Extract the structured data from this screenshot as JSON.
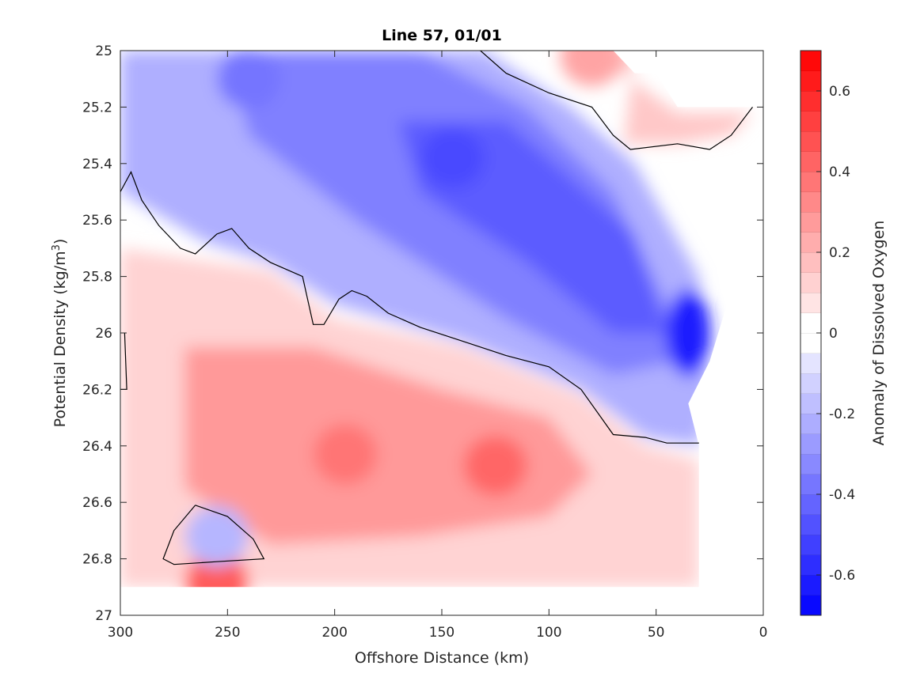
{
  "chart_data": {
    "type": "contour",
    "title": "Line 57, 01/01",
    "xlabel": "Offshore Distance (km)",
    "ylabel_main": "Potential Density (kg/m",
    "ylabel_sup": "3",
    "ylabel_close": ")",
    "xlim": [
      300,
      0
    ],
    "ylim": [
      25,
      27
    ],
    "y_reversed": true,
    "x_reversed": true,
    "xticks": [
      300,
      250,
      200,
      150,
      100,
      50,
      0
    ],
    "yticks": [
      25,
      25.2,
      25.4,
      25.6,
      25.8,
      26,
      26.2,
      26.4,
      26.6,
      26.8,
      27
    ],
    "colorbar": {
      "label": "Anomaly of Dissolved Oxygen",
      "range": [
        -0.7,
        0.7
      ],
      "ticks": [
        -0.6,
        -0.4,
        -0.2,
        0,
        0.2,
        0.4,
        0.6
      ],
      "levels": 28,
      "low_color": "#0000ff",
      "mid_color": "#ffffff",
      "high_color": "#ff0000"
    },
    "features": [
      {
        "kind": "anomaly-max",
        "x": 125,
        "y": 26.47,
        "value": 0.42
      },
      {
        "kind": "anomaly-max",
        "x": 195,
        "y": 26.43,
        "value": 0.38
      },
      {
        "kind": "anomaly-max",
        "x": 255,
        "y": 26.88,
        "value": 0.45
      },
      {
        "kind": "anomaly-min",
        "x": 35,
        "y": 26.0,
        "value": -0.62
      },
      {
        "kind": "anomaly-min",
        "x": 145,
        "y": 25.38,
        "value": -0.5
      },
      {
        "kind": "anomaly-min",
        "x": 240,
        "y": 25.1,
        "value": -0.38
      },
      {
        "kind": "anomaly-min",
        "x": 255,
        "y": 26.72,
        "value": -0.2
      },
      {
        "kind": "anomaly-max",
        "x": 80,
        "y": 25.02,
        "value": 0.25
      }
    ],
    "zero_contours": [
      [
        [
          300,
          25.5
        ],
        [
          295,
          25.43
        ],
        [
          290,
          25.53
        ],
        [
          282,
          25.62
        ],
        [
          272,
          25.7
        ],
        [
          265,
          25.72
        ],
        [
          255,
          25.65
        ],
        [
          248,
          25.63
        ],
        [
          240,
          25.7
        ],
        [
          230,
          25.75
        ],
        [
          215,
          25.8
        ],
        [
          210,
          25.97
        ],
        [
          205,
          25.97
        ],
        [
          198,
          25.88
        ],
        [
          192,
          25.85
        ],
        [
          185,
          25.87
        ],
        [
          175,
          25.93
        ],
        [
          160,
          25.98
        ],
        [
          140,
          26.03
        ],
        [
          120,
          26.08
        ],
        [
          100,
          26.12
        ],
        [
          85,
          26.2
        ],
        [
          70,
          26.36
        ],
        [
          55,
          26.37
        ],
        [
          45,
          26.39
        ],
        [
          30,
          26.39
        ]
      ],
      [
        [
          300,
          26.2
        ],
        [
          297,
          26.2
        ],
        [
          298,
          26.0
        ]
      ],
      [
        [
          132,
          25.0
        ],
        [
          120,
          25.08
        ],
        [
          100,
          25.15
        ],
        [
          80,
          25.2
        ],
        [
          70,
          25.3
        ],
        [
          62,
          25.35
        ],
        [
          40,
          25.33
        ],
        [
          25,
          25.35
        ],
        [
          15,
          25.3
        ],
        [
          5,
          25.2
        ]
      ],
      [
        [
          265,
          26.61
        ],
        [
          250,
          26.65
        ],
        [
          238,
          26.73
        ],
        [
          233,
          26.8
        ],
        [
          255,
          26.81
        ],
        [
          275,
          26.82
        ],
        [
          280,
          26.8
        ],
        [
          275,
          26.7
        ],
        [
          265,
          26.61
        ]
      ]
    ],
    "data_mask": [
      [
        300,
        25.0
      ],
      [
        70,
        25.0
      ],
      [
        60,
        25.08
      ],
      [
        50,
        25.08
      ],
      [
        40,
        25.2
      ],
      [
        0,
        25.2
      ],
      [
        5,
        25.5
      ],
      [
        15,
        25.85
      ],
      [
        25,
        26.1
      ],
      [
        35,
        26.25
      ],
      [
        30,
        26.4
      ],
      [
        30,
        26.9
      ],
      [
        300,
        26.9
      ]
    ]
  }
}
